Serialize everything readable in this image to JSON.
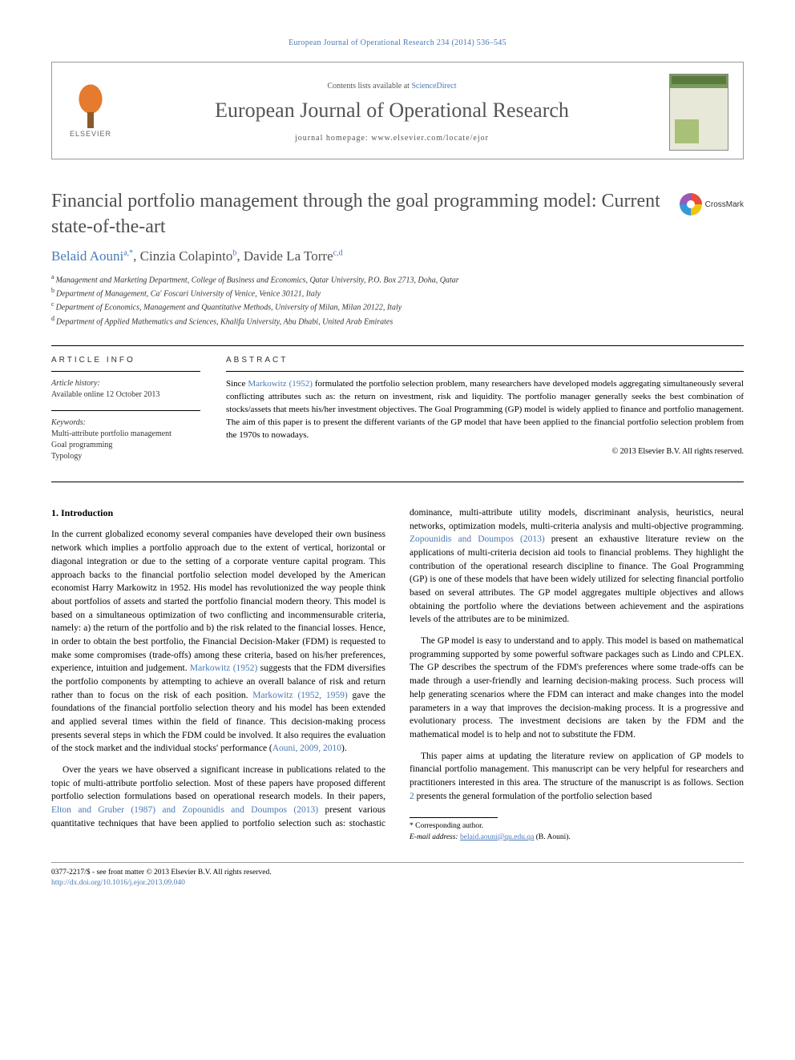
{
  "header": {
    "citation": "European Journal of Operational Research 234 (2014) 536–545"
  },
  "masthead": {
    "publisher_label": "ELSEVIER",
    "contents_prefix": "Contents lists available at ",
    "contents_link": "ScienceDirect",
    "journal_name": "European Journal of Operational Research",
    "homepage_label": "journal homepage: ",
    "homepage_url": "www.elsevier.com/locate/ejor"
  },
  "article": {
    "title": "Financial portfolio management through the goal programming model: Current state-of-the-art",
    "crossmark_label": "CrossMark",
    "authors_html": "Belaid Aouni",
    "author_a_sup": "a,",
    "author_a_star": "*",
    "author_sep1": ", ",
    "author2": "Cinzia Colapinto",
    "author_b_sup": "b",
    "author_sep2": ", ",
    "author3": "Davide La Torre",
    "author_cd_sup": "c,d",
    "affiliations": [
      {
        "sup": "a",
        "text": "Management and Marketing Department, College of Business and Economics, Qatar University, P.O. Box 2713, Doha, Qatar"
      },
      {
        "sup": "b",
        "text": "Department of Management, Ca' Foscari University of Venice, Venice 30121, Italy"
      },
      {
        "sup": "c",
        "text": "Department of Economics, Management and Quantitative Methods, University of Milan, Milan 20122, Italy"
      },
      {
        "sup": "d",
        "text": "Department of Applied Mathematics and Sciences, Khalifa University, Abu Dhabi, United Arab Emirates"
      }
    ]
  },
  "info": {
    "heading": "ARTICLE INFO",
    "history_label": "Article history:",
    "history_value": "Available online 12 October 2013",
    "keywords_label": "Keywords:",
    "keywords": [
      "Multi-attribute portfolio management",
      "Goal programming",
      "Typology"
    ]
  },
  "abstract": {
    "heading": "ABSTRACT",
    "text_before_link": "Since ",
    "link1": "Markowitz (1952)",
    "text_after": " formulated the portfolio selection problem, many researchers have developed models aggregating simultaneously several conflicting attributes such as: the return on investment, risk and liquidity. The portfolio manager generally seeks the best combination of stocks/assets that meets his/her investment objectives. The Goal Programming (GP) model is widely applied to finance and portfolio management. The aim of this paper is to present the different variants of the GP model that have been applied to the financial portfolio selection problem from the 1970s to nowadays.",
    "copyright": "© 2013 Elsevier B.V. All rights reserved."
  },
  "body": {
    "section1_heading": "1. Introduction",
    "p1a": "In the current globalized economy several companies have developed their own business network which implies a portfolio approach due to the extent of vertical, horizontal or diagonal integration or due to the setting of a corporate venture capital program. This approach backs to the financial portfolio selection model developed by the American economist Harry Markowitz in 1952. His model has revolutionized the way people think about portfolios of assets and started the portfolio financial modern theory. This model is based on a simultaneous optimization of two conflicting and incommensurable criteria, namely: a) the return of the portfolio and b) the risk related to the financial losses. Hence, in order to obtain the best portfolio, the Financial Decision-Maker (FDM) is requested to make some compromises (trade-offs) among these criteria, based on his/her preferences, experience, intuition and judgement. ",
    "p1_link1": "Markowitz (1952)",
    "p1b": " suggests that the FDM diversifies the portfolio components by attempting to achieve an overall balance of risk and return rather than to focus on the risk of each position. ",
    "p1_link2": "Markowitz (1952, 1959)",
    "p1c": " gave the foundations of the financial portfolio selection theory and his model has been extended and applied several times within the field of finance. This decision-making process presents several steps in which the FDM could be involved. It also requires the evaluation of the stock market and the individual stocks' performance (",
    "p1_link3": "Aouni, 2009, 2010",
    "p1d": ").",
    "p2a": "Over the years we have observed a significant increase in publications related to the topic of multi-attribute portfolio selection. Most of these papers have proposed different portfolio selection formulations based on operational research models. In their papers, ",
    "p2_link1": "Elton and Gruber (1987) and Zopounidis and Doumpos (2013)",
    "p2b": " present various quantitative techniques that have been applied to portfolio selection such as: stochastic dominance, multi-attribute utility models, discriminant analysis, heuristics, neural networks, optimization models, multi-criteria analysis and multi-objective programming. ",
    "p2_link2": "Zopounidis and Doumpos (2013)",
    "p2c": " present an exhaustive literature review on the applications of multi-criteria decision aid tools to financial problems. They highlight the contribution of the operational research discipline to finance. The Goal Programming (GP) is one of these models that have been widely utilized for selecting financial portfolio based on several attributes. The GP model aggregates multiple objectives and allows obtaining the portfolio where the deviations between achievement and the aspirations levels of the attributes are to be minimized.",
    "p3": "The GP model is easy to understand and to apply. This model is based on mathematical programming supported by some powerful software packages such as Lindo and CPLEX. The GP describes the spectrum of the FDM's preferences where some trade-offs can be made through a user-friendly and learning decision-making process. Such process will help generating scenarios where the FDM can interact and make changes into the model parameters in a way that improves the decision-making process. It is a progressive and evolutionary process. The investment decisions are taken by the FDM and the mathematical model is to help and not to substitute the FDM.",
    "p4a": "This paper aims at updating the literature review on application of GP models to financial portfolio management. This manuscript can be very helpful for researchers and practitioners interested in this area. The structure of the manuscript is as follows. Section ",
    "p4_link1": "2",
    "p4b": " presents the general formulation of the portfolio selection based"
  },
  "footnotes": {
    "corr_marker": "*",
    "corr_label": " Corresponding author.",
    "email_label": "E-mail address: ",
    "email": "belaid.aouni@qu.edu.qa",
    "email_suffix": " (B. Aouni)."
  },
  "footer": {
    "issn_line": "0377-2217/$ - see front matter © 2013 Elsevier B.V. All rights reserved.",
    "doi_label": "http://dx.doi.org/",
    "doi": "10.1016/j.ejor.2013.09.040"
  },
  "colors": {
    "link": "#4a7ab5",
    "tree": "#e67a2e",
    "cover_green": "#7a9b5c"
  }
}
